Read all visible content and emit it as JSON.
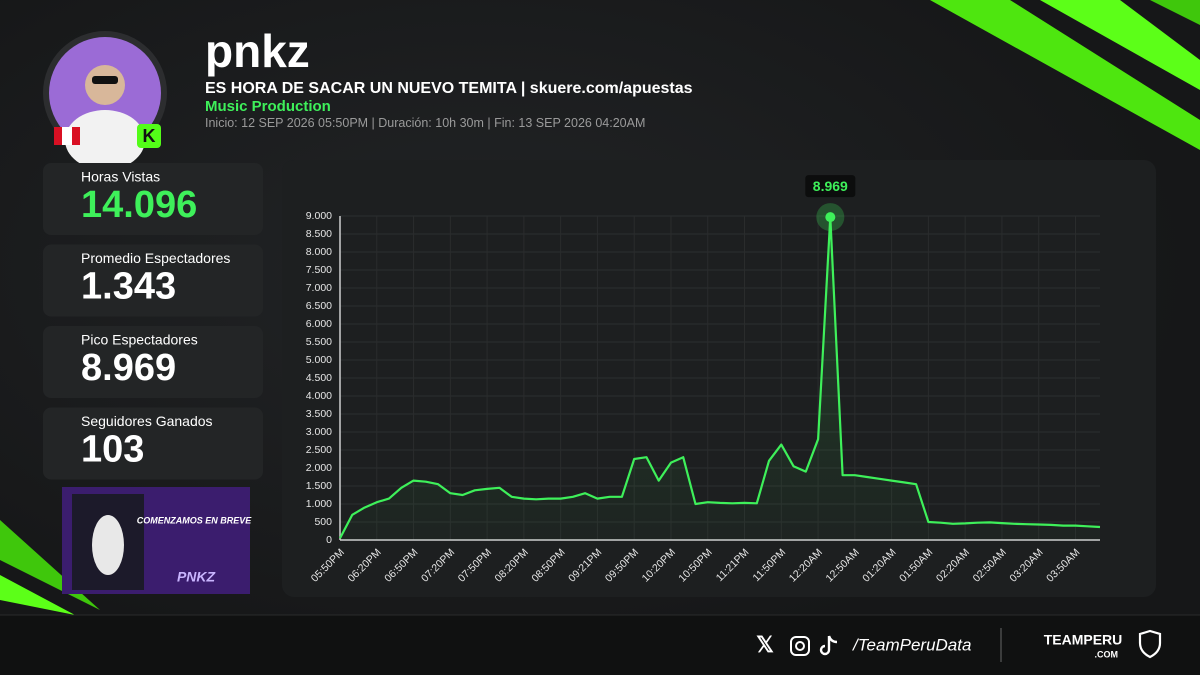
{
  "header": {
    "name": "pnkz",
    "title": "ES HORA DE SACAR UN NUEVO TEMITA | skuere.com/apuestas",
    "category": "Music Production",
    "meta": [
      "Inicio: 12 SEP 2026 05:50PM",
      "Duración: 10h 30m",
      "Fin: 13 SEP 2026 04:20AM"
    ]
  },
  "stats": [
    {
      "label": "Horas Vistas",
      "value": "14.096"
    },
    {
      "label": "Promedio Espectadores",
      "value": "1.343"
    },
    {
      "label": "Pico Espectadores",
      "value": "8.969"
    },
    {
      "label": "Seguidores Ganados",
      "value": "103"
    }
  ],
  "thumbnail": {
    "caption": "COMENZAMOS EN BREVE",
    "logo": "PNKZ"
  },
  "chart_data": {
    "type": "line",
    "color": "#3ef05a",
    "annotation": "8.969",
    "grid": true,
    "categories": [
      "05:50PM",
      null,
      null,
      "06:20PM",
      null,
      null,
      "06:50PM",
      null,
      null,
      "07:20PM",
      null,
      null,
      "07:50PM",
      null,
      null,
      "08:20PM",
      null,
      null,
      "08:50PM",
      null,
      null,
      "09:21PM",
      null,
      null,
      "09:50PM",
      null,
      null,
      "10:20PM",
      null,
      null,
      "10:50PM",
      null,
      null,
      "11:21PM",
      null,
      null,
      "11:50PM",
      null,
      null,
      "12:20AM",
      null,
      null,
      "12:50AM",
      null,
      null,
      "01:20AM",
      null,
      null,
      "01:50AM",
      null,
      null,
      "02:20AM",
      null,
      null,
      "02:50AM",
      null,
      null,
      "03:20AM",
      null,
      null,
      "03:50AM",
      null,
      null
    ],
    "values": [
      50,
      700,
      900,
      1050,
      1150,
      1450,
      1650,
      1620,
      1550,
      1300,
      1250,
      1380,
      1420,
      1450,
      1200,
      1150,
      1130,
      1150,
      1150,
      1200,
      1300,
      1150,
      1200,
      1200,
      2250,
      2300,
      1650,
      2150,
      2300,
      1000,
      1050,
      1030,
      1020,
      1030,
      1020,
      2200,
      2650,
      2050,
      1900,
      2800,
      8969,
      1800,
      1800,
      1750,
      1700,
      1650,
      1600,
      1550,
      500,
      480,
      450,
      460,
      480,
      490,
      470,
      450,
      440,
      430,
      420,
      400,
      400,
      380,
      360
    ],
    "ylim": [
      0,
      9000
    ],
    "yticks": [
      0,
      {
        "value": 500,
        "label": "500"
      },
      {
        "value": 1000,
        "label": "1.000"
      },
      {
        "value": 1500,
        "label": "1.500"
      },
      {
        "value": 2000,
        "label": "2.000"
      },
      {
        "value": 2500,
        "label": "2.500"
      },
      {
        "value": 3000,
        "label": "3.000"
      },
      {
        "value": 3500,
        "label": "3.500"
      },
      {
        "value": 4000,
        "label": "4.000"
      },
      {
        "value": 4500,
        "label": "4.500"
      },
      {
        "value": 5000,
        "label": "5.000"
      },
      {
        "value": 5500,
        "label": "5.500"
      },
      {
        "value": 6000,
        "label": "6.000"
      },
      {
        "value": 6500,
        "label": "6.500"
      },
      {
        "value": 7000,
        "label": "7.000"
      },
      {
        "value": 7500,
        "label": "7.500"
      },
      {
        "value": 8000,
        "label": "8.000"
      },
      {
        "value": 8500,
        "label": "8.500"
      },
      {
        "value": 9000,
        "label": "9.000"
      }
    ]
  },
  "footer": {
    "handle": "/TeamPeruData",
    "brand": "TEAMPERU",
    "domain": ".COM"
  }
}
